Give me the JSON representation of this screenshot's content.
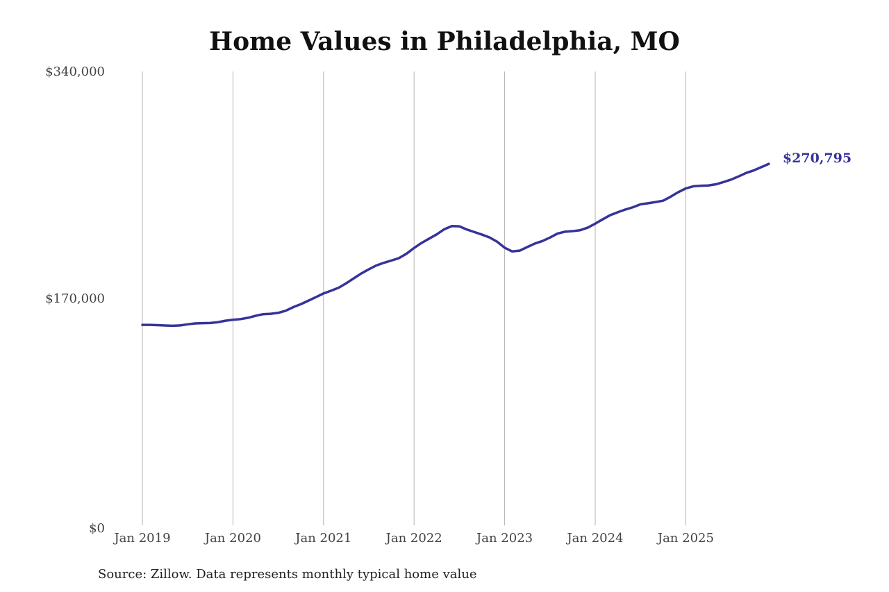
{
  "chart_data": {
    "type": "line",
    "title": "Home Values in Philadelphia, MO",
    "xlabel": "",
    "ylabel": "",
    "x_tick_labels": [
      "Jan 2019",
      "Jan 2020",
      "Jan 2021",
      "Jan 2022",
      "Jan 2023",
      "Jan 2024",
      "Jan 2025"
    ],
    "y_tick_labels": [
      "$0",
      "$170,000",
      "$340,000"
    ],
    "y_ticks": [
      0,
      170000,
      340000
    ],
    "ylim": [
      0,
      340000
    ],
    "xlim": [
      "2019-01",
      "2025-12"
    ],
    "grid": "vertical lines at each January",
    "color": "#35339a",
    "end_value_label": "$270,795",
    "series": [
      {
        "points": [
          [
            "2019-01",
            150200
          ],
          [
            "2019-02",
            150200
          ],
          [
            "2019-03",
            150000
          ],
          [
            "2019-04",
            149700
          ],
          [
            "2019-05",
            149500
          ],
          [
            "2019-06",
            149800
          ],
          [
            "2019-07",
            150600
          ],
          [
            "2019-08",
            151300
          ],
          [
            "2019-09",
            151500
          ],
          [
            "2019-10",
            151600
          ],
          [
            "2019-11",
            152200
          ],
          [
            "2019-12",
            153300
          ],
          [
            "2020-01",
            154000
          ],
          [
            "2020-02",
            154500
          ],
          [
            "2020-03",
            155500
          ],
          [
            "2020-04",
            157000
          ],
          [
            "2020-05",
            158200
          ],
          [
            "2020-06",
            158500
          ],
          [
            "2020-07",
            159200
          ],
          [
            "2020-08",
            160800
          ],
          [
            "2020-09",
            163500
          ],
          [
            "2020-10",
            165700
          ],
          [
            "2020-11",
            168300
          ],
          [
            "2020-12",
            171000
          ],
          [
            "2021-01",
            173700
          ],
          [
            "2021-02",
            175800
          ],
          [
            "2021-03",
            178000
          ],
          [
            "2021-04",
            181300
          ],
          [
            "2021-05",
            185000
          ],
          [
            "2021-06",
            188700
          ],
          [
            "2021-07",
            191800
          ],
          [
            "2021-08",
            194700
          ],
          [
            "2021-09",
            196700
          ],
          [
            "2021-10",
            198400
          ],
          [
            "2021-11",
            200200
          ],
          [
            "2021-12",
            203500
          ],
          [
            "2022-01",
            207800
          ],
          [
            "2022-02",
            211600
          ],
          [
            "2022-03",
            214800
          ],
          [
            "2022-04",
            218000
          ],
          [
            "2022-05",
            221800
          ],
          [
            "2022-06",
            224200
          ],
          [
            "2022-07",
            224000
          ],
          [
            "2022-08",
            221600
          ],
          [
            "2022-09",
            219700
          ],
          [
            "2022-10",
            217800
          ],
          [
            "2022-11",
            215700
          ],
          [
            "2022-12",
            212500
          ],
          [
            "2023-01",
            208000
          ],
          [
            "2023-02",
            205200
          ],
          [
            "2023-03",
            205800
          ],
          [
            "2023-04",
            208500
          ],
          [
            "2023-05",
            211100
          ],
          [
            "2023-06",
            213000
          ],
          [
            "2023-07",
            215600
          ],
          [
            "2023-08",
            218600
          ],
          [
            "2023-09",
            220000
          ],
          [
            "2023-10",
            220400
          ],
          [
            "2023-11",
            221100
          ],
          [
            "2023-12",
            223000
          ],
          [
            "2024-01",
            226000
          ],
          [
            "2024-02",
            229300
          ],
          [
            "2024-03",
            232400
          ],
          [
            "2024-04",
            234600
          ],
          [
            "2024-05",
            236600
          ],
          [
            "2024-06",
            238300
          ],
          [
            "2024-07",
            240500
          ],
          [
            "2024-08",
            241300
          ],
          [
            "2024-09",
            242200
          ],
          [
            "2024-10",
            243200
          ],
          [
            "2024-11",
            246200
          ],
          [
            "2024-12",
            249600
          ],
          [
            "2025-01",
            252400
          ],
          [
            "2025-02",
            254000
          ],
          [
            "2025-03",
            254400
          ],
          [
            "2025-04",
            254600
          ],
          [
            "2025-05",
            255500
          ],
          [
            "2025-06",
            257200
          ],
          [
            "2025-07",
            259000
          ],
          [
            "2025-08",
            261400
          ],
          [
            "2025-09",
            264000
          ],
          [
            "2025-10",
            265900
          ],
          [
            "2025-11",
            268300
          ],
          [
            "2025-12",
            270795
          ]
        ]
      }
    ]
  },
  "source_note": "Source: Zillow. Data represents monthly typical home value"
}
